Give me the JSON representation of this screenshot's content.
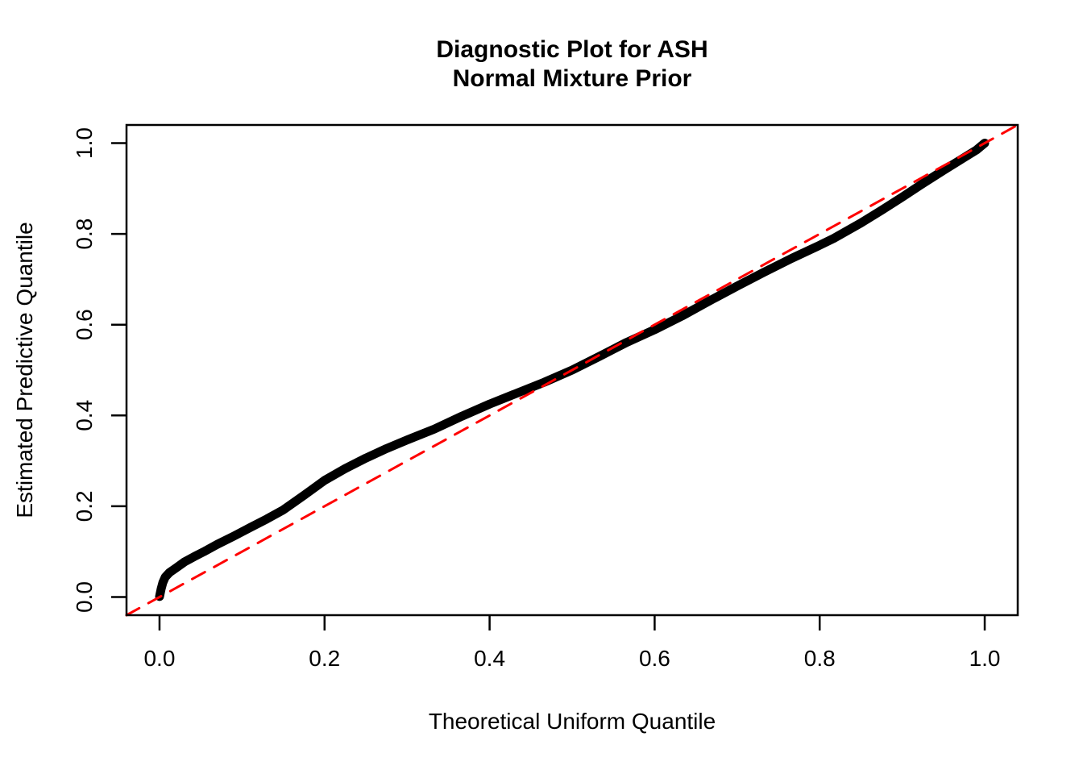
{
  "figure": {
    "title_line1": "Diagnostic Plot for ASH",
    "title_line2": "Normal Mixture Prior",
    "x_axis_label": "Theoretical Uniform Quantile",
    "y_axis_label": "Estimated Predictive Quantile"
  },
  "colors": {
    "background": "#FFFFFF",
    "text": "#000000",
    "axis": "#000000",
    "curve": "#000000",
    "reference_line": "#FF0000"
  },
  "chart_data": {
    "type": "line",
    "title": "Diagnostic Plot for ASH / Normal Mixture Prior",
    "xlabel": "Theoretical Uniform Quantile",
    "ylabel": "Estimated Predictive Quantile",
    "xlim": [
      -0.04,
      1.04
    ],
    "ylim": [
      -0.04,
      1.04
    ],
    "grid": false,
    "legend": "none",
    "x_ticks": {
      "values": [
        0.0,
        0.2,
        0.4,
        0.6,
        0.8,
        1.0
      ],
      "labels": [
        "0.0",
        "0.2",
        "0.4",
        "0.6",
        "0.8",
        "1.0"
      ]
    },
    "y_ticks": {
      "values": [
        0.0,
        0.2,
        0.4,
        0.6,
        0.8,
        1.0
      ],
      "labels": [
        "0.0",
        "0.2",
        "0.4",
        "0.6",
        "0.8",
        "1.0"
      ]
    },
    "series": [
      {
        "name": "ash-estimated-predictive-quantile-curve",
        "type": "line",
        "color": "#000000",
        "style": "solid",
        "stroke_width": 11,
        "points": [
          [
            0.0,
            0.001
          ],
          [
            0.002,
            0.018
          ],
          [
            0.004,
            0.032
          ],
          [
            0.007,
            0.044
          ],
          [
            0.012,
            0.054
          ],
          [
            0.02,
            0.064
          ],
          [
            0.03,
            0.077
          ],
          [
            0.042,
            0.089
          ],
          [
            0.055,
            0.101
          ],
          [
            0.07,
            0.116
          ],
          [
            0.09,
            0.134
          ],
          [
            0.11,
            0.153
          ],
          [
            0.13,
            0.172
          ],
          [
            0.15,
            0.192
          ],
          [
            0.175,
            0.224
          ],
          [
            0.2,
            0.257
          ],
          [
            0.225,
            0.283
          ],
          [
            0.25,
            0.306
          ],
          [
            0.275,
            0.327
          ],
          [
            0.3,
            0.346
          ],
          [
            0.333,
            0.37
          ],
          [
            0.366,
            0.398
          ],
          [
            0.4,
            0.425
          ],
          [
            0.433,
            0.449
          ],
          [
            0.466,
            0.473
          ],
          [
            0.5,
            0.5
          ],
          [
            0.533,
            0.53
          ],
          [
            0.566,
            0.561
          ],
          [
            0.6,
            0.589
          ],
          [
            0.633,
            0.619
          ],
          [
            0.666,
            0.652
          ],
          [
            0.7,
            0.685
          ],
          [
            0.733,
            0.716
          ],
          [
            0.766,
            0.746
          ],
          [
            0.8,
            0.775
          ],
          [
            0.817,
            0.79
          ],
          [
            0.85,
            0.824
          ],
          [
            0.875,
            0.852
          ],
          [
            0.9,
            0.881
          ],
          [
            0.925,
            0.911
          ],
          [
            0.95,
            0.94
          ],
          [
            0.975,
            0.968
          ],
          [
            0.99,
            0.985
          ],
          [
            1.0,
            1.0
          ]
        ]
      },
      {
        "name": "reference-diagonal-y-equals-x",
        "type": "line",
        "color": "#FF0000",
        "style": "dashed",
        "stroke_width": 3,
        "points": [
          [
            -0.04,
            -0.04
          ],
          [
            1.04,
            1.04
          ]
        ]
      }
    ]
  }
}
